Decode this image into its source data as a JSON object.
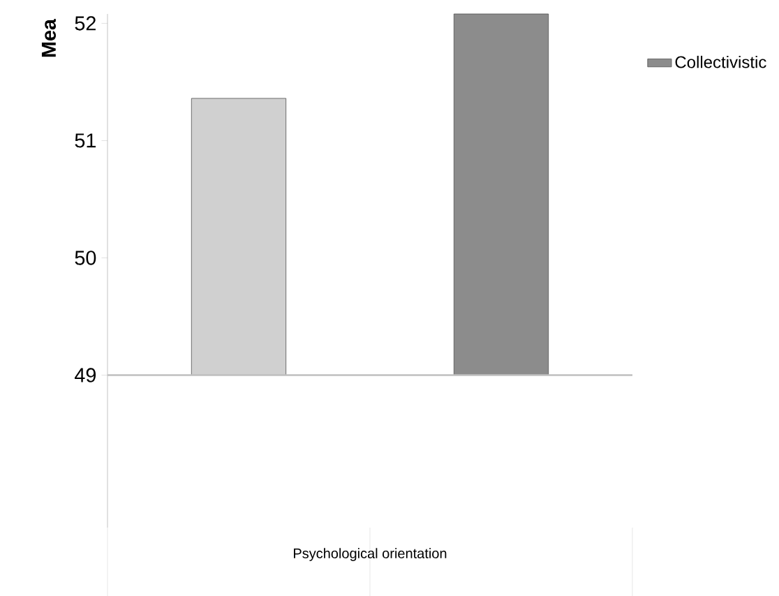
{
  "chart_data": {
    "type": "bar",
    "xlabel": "Psychological orientation",
    "ylabel": "Mea",
    "categories": [
      null,
      null
    ],
    "series": [
      {
        "color": "#d0d0d0",
        "values": [
          2.36,
          null
        ],
        "base": [
          49,
          null
        ]
      },
      {
        "name": "Collectivistic",
        "color": "#8c8c8c",
        "values": [
          null,
          3.08
        ],
        "base": [
          null,
          49
        ]
      }
    ],
    "ylim": [
      47.7,
      52.08
    ],
    "yticks": [
      49,
      50,
      51,
      52
    ],
    "legend": "right",
    "ref_lines": [
      {
        "axis": "y",
        "value": 49,
        "color": "#bfbfbf"
      }
    ]
  }
}
